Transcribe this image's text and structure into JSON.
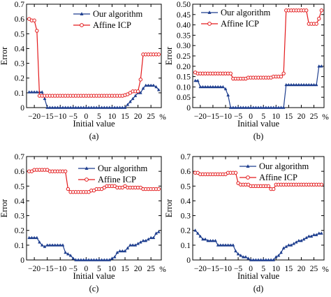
{
  "figure": {
    "line_color_ours": "#1f3f8f",
    "line_color_icp": "#e31a1c"
  },
  "chart_data": [
    {
      "type": "line",
      "caption": "(a)",
      "xlabel": "Initial value",
      "ylabel": "Error",
      "x_unit": "%",
      "xlim": [
        -23,
        29
      ],
      "ylim": [
        0,
        0.7
      ],
      "xticks": [
        -20,
        -15,
        -10,
        -5,
        0,
        5,
        10,
        15,
        20,
        25
      ],
      "yticks": [
        0,
        0.1,
        0.2,
        0.3,
        0.4,
        0.5,
        0.6,
        0.7
      ],
      "ytick_labels": [
        "0",
        "0.1",
        "0.2",
        "0.3",
        "0.4",
        "0.5",
        "0.6",
        "0.7"
      ],
      "legend": "top-right",
      "x": [
        -22,
        -21,
        -20,
        -19,
        -18,
        -17,
        -16,
        -15,
        -14,
        -13,
        -12,
        -11,
        -10,
        -9,
        -8,
        -7,
        -6,
        -5,
        -4,
        -3,
        -2,
        -1,
        0,
        1,
        2,
        3,
        4,
        5,
        6,
        7,
        8,
        9,
        10,
        11,
        12,
        13,
        14,
        15,
        16,
        17,
        18,
        19,
        20,
        21,
        22,
        23,
        24,
        25,
        26,
        27,
        28
      ],
      "series": [
        {
          "name": "Our algorithm",
          "marker": "triangle",
          "values": [
            0.105,
            0.105,
            0.105,
            0.105,
            0.105,
            0.105,
            0.06,
            0,
            0,
            0,
            0,
            0,
            0,
            0,
            0,
            0,
            0,
            0,
            0,
            0,
            0,
            0,
            0,
            0,
            0,
            0,
            0,
            0,
            0,
            0,
            0,
            0,
            0,
            0,
            0,
            0,
            0,
            0,
            0.02,
            0.04,
            0.06,
            0.08,
            0.1,
            0.1,
            0.13,
            0.15,
            0.15,
            0.15,
            0.15,
            0.14,
            0.12
          ]
        },
        {
          "name": "Affine ICP",
          "marker": "circle",
          "values": [
            0.6,
            0.59,
            0.59,
            0.52,
            0.08,
            0.08,
            0.08,
            0.08,
            0.08,
            0.08,
            0.08,
            0.08,
            0.08,
            0.08,
            0.08,
            0.08,
            0.08,
            0.08,
            0.08,
            0.08,
            0.08,
            0.08,
            0.08,
            0.08,
            0.08,
            0.08,
            0.08,
            0.08,
            0.08,
            0.08,
            0.08,
            0.08,
            0.08,
            0.08,
            0.08,
            0.08,
            0.08,
            0.085,
            0.09,
            0.1,
            0.11,
            0.11,
            0.11,
            0.19,
            0.36,
            0.36,
            0.36,
            0.36,
            0.36,
            0.36,
            0.36
          ]
        }
      ]
    },
    {
      "type": "line",
      "caption": "(b)",
      "xlabel": "Initial value",
      "ylabel": "Error",
      "x_unit": "%",
      "xlim": [
        -23,
        29
      ],
      "ylim": [
        0,
        0.5
      ],
      "xticks": [
        -20,
        -15,
        -10,
        -5,
        0,
        5,
        10,
        15,
        20,
        25
      ],
      "yticks": [
        0,
        0.05,
        0.1,
        0.15,
        0.2,
        0.25,
        0.3,
        0.35,
        0.4,
        0.45,
        0.5
      ],
      "ytick_labels": [
        "0",
        "0.05",
        "0.10",
        "0.15",
        "0.20",
        "0.25",
        "0.30",
        "0.35",
        "0.40",
        "0.45",
        "0.50"
      ],
      "legend": "top-left",
      "x": [
        -22,
        -21,
        -20,
        -19,
        -18,
        -17,
        -16,
        -15,
        -14,
        -13,
        -12,
        -11,
        -10,
        -9,
        -8,
        -7,
        -6,
        -5,
        -4,
        -3,
        -2,
        -1,
        0,
        1,
        2,
        3,
        4,
        5,
        6,
        7,
        8,
        9,
        10,
        11,
        12,
        13,
        14,
        15,
        16,
        17,
        18,
        19,
        20,
        21,
        22,
        23,
        24,
        25,
        26,
        27,
        28
      ],
      "series": [
        {
          "name": "Our algorithm",
          "marker": "triangle",
          "values": [
            0.13,
            0.13,
            0.1,
            0.1,
            0.1,
            0.1,
            0.1,
            0.1,
            0.1,
            0.1,
            0.1,
            0.1,
            0.09,
            0.06,
            0,
            0,
            0,
            0,
            0,
            0,
            0,
            0,
            0,
            0,
            0,
            0,
            0,
            0,
            0,
            0,
            0,
            0,
            0,
            0,
            0,
            0,
            0.11,
            0.11,
            0.11,
            0.11,
            0.11,
            0.11,
            0.11,
            0.11,
            0.11,
            0.11,
            0.11,
            0.11,
            0.11,
            0.2,
            0.2
          ]
        },
        {
          "name": "Affine ICP",
          "marker": "circle",
          "values": [
            0.17,
            0.165,
            0.165,
            0.165,
            0.165,
            0.165,
            0.165,
            0.165,
            0.165,
            0.165,
            0.165,
            0.165,
            0.165,
            0.165,
            0.165,
            0.14,
            0.14,
            0.14,
            0.14,
            0.14,
            0.14,
            0.145,
            0.145,
            0.145,
            0.145,
            0.145,
            0.145,
            0.145,
            0.145,
            0.145,
            0.145,
            0.15,
            0.15,
            0.15,
            0.15,
            0.165,
            0.47,
            0.47,
            0.47,
            0.47,
            0.47,
            0.47,
            0.47,
            0.47,
            0.47,
            0.405,
            0.405,
            0.405,
            0.405,
            0.43,
            0.47
          ]
        }
      ]
    },
    {
      "type": "line",
      "caption": "(c)",
      "xlabel": "Initial value",
      "ylabel": "Error",
      "x_unit": "%",
      "xlim": [
        -23,
        29
      ],
      "ylim": [
        0,
        0.7
      ],
      "xticks": [
        -20,
        -15,
        -10,
        -5,
        0,
        5,
        10,
        15,
        20,
        25
      ],
      "yticks": [
        0,
        0.1,
        0.2,
        0.3,
        0.4,
        0.5,
        0.6,
        0.7
      ],
      "ytick_labels": [
        "0",
        "0.1",
        "0.2",
        "0.3",
        "0.4",
        "0.5",
        "0.6",
        "0.7"
      ],
      "legend": "top-right",
      "x": [
        -22,
        -21,
        -20,
        -19,
        -18,
        -17,
        -16,
        -15,
        -14,
        -13,
        -12,
        -11,
        -10,
        -9,
        -8,
        -7,
        -6,
        -5,
        -4,
        -3,
        -2,
        -1,
        0,
        1,
        2,
        3,
        4,
        5,
        6,
        7,
        8,
        9,
        10,
        11,
        12,
        13,
        14,
        15,
        16,
        17,
        18,
        19,
        20,
        21,
        22,
        23,
        24,
        25,
        26,
        27,
        28
      ],
      "series": [
        {
          "name": "Our algorithm",
          "marker": "triangle",
          "values": [
            0.15,
            0.15,
            0.15,
            0.15,
            0.12,
            0.1,
            0.09,
            0.1,
            0.1,
            0.1,
            0.1,
            0.1,
            0.1,
            0.1,
            0.05,
            0.04,
            0.03,
            0.01,
            0,
            0,
            0,
            0,
            0,
            0,
            0,
            0,
            0,
            0,
            0,
            0,
            0,
            0,
            0.01,
            0.02,
            0.05,
            0.06,
            0.06,
            0.06,
            0.08,
            0.1,
            0.1,
            0.1,
            0.11,
            0.12,
            0.13,
            0.13,
            0.14,
            0.15,
            0.15,
            0.18,
            0.19
          ]
        },
        {
          "name": "Affine ICP",
          "marker": "circle",
          "values": [
            0.6,
            0.6,
            0.61,
            0.61,
            0.61,
            0.61,
            0.61,
            0.61,
            0.6,
            0.6,
            0.6,
            0.6,
            0.6,
            0.6,
            0.6,
            0.48,
            0.46,
            0.46,
            0.46,
            0.46,
            0.46,
            0.46,
            0.46,
            0.46,
            0.47,
            0.47,
            0.48,
            0.48,
            0.48,
            0.49,
            0.5,
            0.5,
            0.5,
            0.5,
            0.49,
            0.49,
            0.49,
            0.5,
            0.49,
            0.49,
            0.49,
            0.49,
            0.49,
            0.49,
            0.48,
            0.48,
            0.48,
            0.48,
            0.48,
            0.48,
            0.48
          ]
        }
      ]
    },
    {
      "type": "line",
      "caption": "(d)",
      "xlabel": "Initial value",
      "ylabel": "Error",
      "x_unit": "%",
      "xlim": [
        -23,
        29
      ],
      "ylim": [
        0,
        0.7
      ],
      "xticks": [
        -20,
        -15,
        -10,
        -5,
        0,
        5,
        10,
        15,
        20,
        25
      ],
      "yticks": [
        0,
        0.1,
        0.2,
        0.3,
        0.4,
        0.5,
        0.6,
        0.7
      ],
      "ytick_labels": [
        "0",
        "0.1",
        "0.2",
        "0.3",
        "0.4",
        "0.5",
        "0.6",
        "0.7"
      ],
      "legend": "top-right",
      "x": [
        -22,
        -21,
        -20,
        -19,
        -18,
        -17,
        -16,
        -15,
        -14,
        -13,
        -12,
        -11,
        -10,
        -9,
        -8,
        -7,
        -6,
        -5,
        -4,
        -3,
        -2,
        -1,
        0,
        1,
        2,
        3,
        4,
        5,
        6,
        7,
        8,
        9,
        10,
        11,
        12,
        13,
        14,
        15,
        16,
        17,
        18,
        19,
        20,
        21,
        22,
        23,
        24,
        25,
        26,
        27,
        28
      ],
      "series": [
        {
          "name": "Our algorithm",
          "marker": "triangle",
          "values": [
            0.2,
            0.18,
            0.16,
            0.14,
            0.14,
            0.13,
            0.13,
            0.13,
            0.13,
            0.1,
            0.1,
            0.1,
            0.1,
            0.1,
            0.1,
            0.1,
            0.06,
            0.04,
            0.03,
            0.02,
            0.02,
            0.01,
            0,
            0,
            0,
            0,
            0,
            0,
            0,
            0,
            0,
            0,
            0.02,
            0.03,
            0.05,
            0.08,
            0.09,
            0.1,
            0.1,
            0.11,
            0.12,
            0.13,
            0.13,
            0.14,
            0.15,
            0.16,
            0.16,
            0.17,
            0.17,
            0.18,
            0.18
          ]
        },
        {
          "name": "Affine ICP",
          "marker": "circle",
          "values": [
            0.59,
            0.59,
            0.58,
            0.58,
            0.58,
            0.58,
            0.58,
            0.58,
            0.58,
            0.58,
            0.58,
            0.58,
            0.58,
            0.59,
            0.59,
            0.59,
            0.59,
            0.52,
            0.51,
            0.51,
            0.51,
            0.51,
            0.5,
            0.5,
            0.5,
            0.5,
            0.5,
            0.5,
            0.5,
            0.5,
            0.48,
            0.48,
            0.51,
            0.51,
            0.51,
            0.51,
            0.51,
            0.51,
            0.51,
            0.51,
            0.51,
            0.51,
            0.51,
            0.51,
            0.51,
            0.51,
            0.51,
            0.51,
            0.51,
            0.51,
            0.51
          ]
        }
      ]
    }
  ]
}
